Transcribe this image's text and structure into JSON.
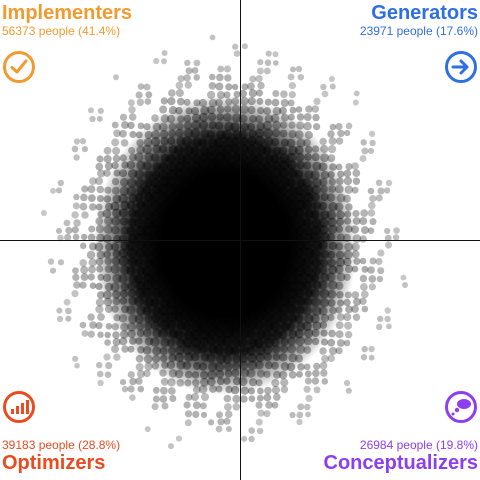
{
  "quadrants": {
    "top_left": {
      "title": "Implementers",
      "stats": "56373 people (41.4%)",
      "color": "#f29a2e",
      "icon": "check-circle-icon"
    },
    "top_right": {
      "title": "Generators",
      "stats": "23971 people (17.6%)",
      "color": "#2f6fe4",
      "icon": "arrow-right-circle-icon"
    },
    "bottom_left": {
      "title": "Optimizers",
      "stats": "39183 people (28.8%)",
      "color": "#ec4a1f",
      "icon": "bar-chart-circle-icon"
    },
    "bottom_right": {
      "title": "Conceptualizers",
      "stats": "26984 people (19.8%)",
      "color": "#8d3ef0",
      "icon": "thought-bubble-circle-icon"
    }
  },
  "plot": {
    "dot_color": "#111111"
  }
}
